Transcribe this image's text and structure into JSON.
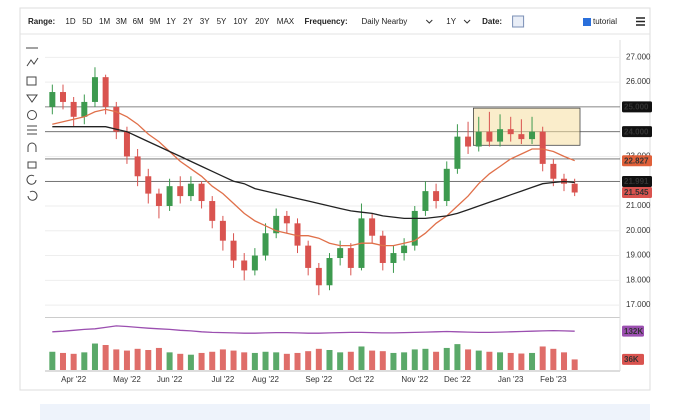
{
  "toolbar": {
    "range_label": "Range:",
    "ranges": [
      "1D",
      "5D",
      "1M",
      "3M",
      "6M",
      "9M",
      "1Y",
      "2Y",
      "3Y",
      "5Y",
      "10Y",
      "20Y",
      "MAX"
    ],
    "frequency_label": "Frequency:",
    "frequency": "Daily Nearby",
    "period": "1Y",
    "date_label": "Date:",
    "tutorial": "tutorial"
  },
  "chart_data": {
    "type": "candlestick",
    "categories": [
      null,
      null,
      "Apr '22",
      null,
      null,
      null,
      null,
      "May '22",
      null,
      null,
      null,
      "Jun '22",
      null,
      null,
      null,
      null,
      "Jul '22",
      null,
      null,
      null,
      "Aug '22",
      null,
      null,
      null,
      null,
      "Sep '22",
      null,
      null,
      null,
      "Oct '22",
      null,
      null,
      null,
      null,
      "Nov '22",
      null,
      null,
      null,
      "Dec '22",
      null,
      null,
      null,
      null,
      "Jan '23",
      null,
      null,
      null,
      "Feb '23",
      null,
      null
    ],
    "open": [
      25.0,
      25.6,
      25.2,
      24.6,
      25.2,
      26.2,
      25.0,
      24.0,
      23.0,
      22.2,
      21.5,
      21.0,
      21.8,
      21.4,
      21.9,
      21.2,
      20.4,
      19.6,
      18.8,
      18.4,
      19.0,
      19.9,
      20.6,
      20.3,
      19.4,
      18.5,
      17.8,
      18.9,
      19.3,
      18.5,
      20.5,
      19.8,
      18.7,
      19.1,
      19.4,
      20.8,
      21.6,
      21.2,
      22.5,
      23.8,
      23.4,
      24.0,
      23.6,
      24.1,
      23.9,
      23.7,
      24.0,
      22.7,
      22.1,
      21.9
    ],
    "high": [
      25.9,
      25.9,
      25.4,
      25.5,
      26.6,
      26.3,
      25.2,
      24.2,
      23.3,
      22.5,
      21.7,
      22.1,
      22.2,
      22.2,
      22.0,
      21.4,
      20.6,
      19.9,
      19.1,
      19.3,
      20.3,
      20.9,
      20.8,
      20.5,
      19.6,
      18.7,
      19.1,
      19.6,
      19.5,
      21.1,
      20.7,
      20.0,
      19.4,
      19.7,
      21.0,
      22.0,
      21.9,
      22.8,
      24.3,
      24.4,
      24.6,
      24.8,
      24.7,
      24.6,
      24.5,
      24.6,
      24.2,
      22.9,
      22.3,
      22.1
    ],
    "low": [
      24.7,
      24.9,
      24.2,
      24.3,
      25.0,
      24.7,
      23.7,
      22.7,
      21.8,
      21.1,
      20.5,
      20.8,
      21.1,
      21.2,
      20.9,
      20.1,
      19.2,
      18.5,
      18.0,
      18.2,
      18.8,
      19.7,
      19.9,
      19.1,
      18.2,
      17.4,
      17.6,
      18.6,
      18.2,
      18.4,
      19.5,
      18.4,
      18.3,
      18.8,
      19.2,
      20.6,
      20.9,
      21.0,
      22.3,
      23.1,
      23.2,
      23.4,
      23.4,
      23.6,
      23.5,
      23.5,
      22.4,
      21.8,
      21.6,
      21.4
    ],
    "close": [
      25.6,
      25.2,
      24.6,
      25.2,
      26.2,
      25.0,
      24.0,
      23.0,
      22.2,
      21.5,
      21.0,
      21.8,
      21.4,
      21.9,
      21.2,
      20.4,
      19.6,
      18.8,
      18.4,
      19.0,
      19.9,
      20.6,
      20.3,
      19.4,
      18.5,
      17.8,
      18.9,
      19.3,
      18.5,
      20.5,
      19.8,
      18.7,
      19.1,
      19.4,
      20.8,
      21.6,
      21.2,
      22.5,
      23.8,
      23.4,
      24.0,
      23.6,
      24.1,
      23.9,
      23.7,
      24.0,
      22.7,
      22.1,
      21.9,
      21.545
    ],
    "up_color": "#3d9a4f",
    "down_color": "#d9534f",
    "ma_short": {
      "color": "#e0704a",
      "values": [
        24.3,
        24.4,
        24.5,
        24.6,
        24.8,
        24.9,
        24.8,
        24.6,
        24.3,
        23.9,
        23.6,
        23.2,
        22.8,
        22.5,
        22.2,
        21.8,
        21.5,
        21.1,
        20.7,
        20.4,
        20.2,
        20.0,
        19.9,
        19.8,
        19.8,
        19.7,
        19.5,
        19.4,
        19.4,
        19.5,
        19.5,
        19.4,
        19.4,
        19.5,
        19.6,
        19.9,
        20.3,
        20.6,
        21.0,
        21.4,
        21.9,
        22.3,
        22.6,
        22.9,
        23.1,
        23.3,
        23.3,
        23.2,
        23.0,
        22.83
      ]
    },
    "ma_long": {
      "color": "#222222",
      "values": [
        24.2,
        24.2,
        24.2,
        24.2,
        24.2,
        24.2,
        24.1,
        24.0,
        23.8,
        23.6,
        23.4,
        23.2,
        23.0,
        22.8,
        22.6,
        22.4,
        22.2,
        22.0,
        21.9,
        21.7,
        21.6,
        21.5,
        21.4,
        21.3,
        21.2,
        21.1,
        21.0,
        20.9,
        20.8,
        20.75,
        20.7,
        20.6,
        20.55,
        20.5,
        20.5,
        20.5,
        20.55,
        20.6,
        20.7,
        20.85,
        21.0,
        21.15,
        21.3,
        21.45,
        21.6,
        21.75,
        21.9,
        21.95,
        21.99,
        21.95
      ]
    },
    "ylim": [
      16.6,
      27.7
    ],
    "yticks": [
      {
        "value": 17,
        "label": "17.000"
      },
      {
        "value": 18,
        "label": "18.000"
      },
      {
        "value": 19,
        "label": "19.000"
      },
      {
        "value": 20,
        "label": "20.000"
      },
      {
        "value": 21,
        "label": "21.000"
      },
      {
        "value": 22,
        "label": "22.000"
      },
      {
        "value": 23,
        "label": "23.000"
      },
      {
        "value": 24,
        "label": "24.000"
      },
      {
        "value": 25,
        "label": "25.000"
      },
      {
        "value": 26,
        "label": "26.000"
      },
      {
        "value": 27,
        "label": "27.000"
      }
    ],
    "grid": true,
    "hlines": [
      25,
      24,
      22.9,
      21.991
    ],
    "box": {
      "x": [
        40,
        49
      ],
      "y": [
        23.45,
        24.95
      ]
    },
    "tags": [
      {
        "value": 25,
        "label": "25.000",
        "color": "#111111"
      },
      {
        "value": 24,
        "label": "24.000",
        "color": "#111111"
      },
      {
        "value": 22.827,
        "label": "22.827",
        "color": "#e0603a"
      },
      {
        "value": 21.991,
        "label": "21.991",
        "color": "#111111"
      },
      {
        "value": 21.545,
        "label": "21.545",
        "color": "#d9534f"
      }
    ],
    "volume": {
      "values": [
        62000,
        58000,
        55000,
        60000,
        90000,
        85000,
        70000,
        66000,
        72000,
        68000,
        75000,
        60000,
        55000,
        52000,
        58000,
        62000,
        70000,
        66000,
        60000,
        58000,
        62000,
        60000,
        55000,
        58000,
        64000,
        72000,
        68000,
        60000,
        62000,
        80000,
        66000,
        64000,
        58000,
        60000,
        70000,
        72000,
        62000,
        75000,
        88000,
        70000,
        66000,
        62000,
        60000,
        58000,
        56000,
        58000,
        80000,
        72000,
        60000,
        36000
      ]
    },
    "volume_avg": {
      "color": "#9b4fb0",
      "values": [
        130000,
        132000,
        135000,
        138000,
        140000,
        145000,
        150000,
        148000,
        145000,
        142000,
        140000,
        138000,
        135000,
        133000,
        130000,
        128000,
        127000,
        126000,
        125000,
        125000,
        126000,
        127000,
        127000,
        126000,
        125000,
        125000,
        126000,
        127000,
        128000,
        128000,
        127000,
        126000,
        126000,
        127000,
        128000,
        129000,
        130000,
        131000,
        130000,
        129000,
        128000,
        128000,
        129000,
        130000,
        131000,
        132000,
        133000,
        134000,
        133000,
        132000
      ]
    },
    "vlim": [
      0,
      170000
    ],
    "volume_tags": [
      {
        "value": 132000,
        "label": "132K",
        "color": "#9b4fb0"
      },
      {
        "value": 36000,
        "label": "36K",
        "color": "#d9534f"
      }
    ]
  }
}
